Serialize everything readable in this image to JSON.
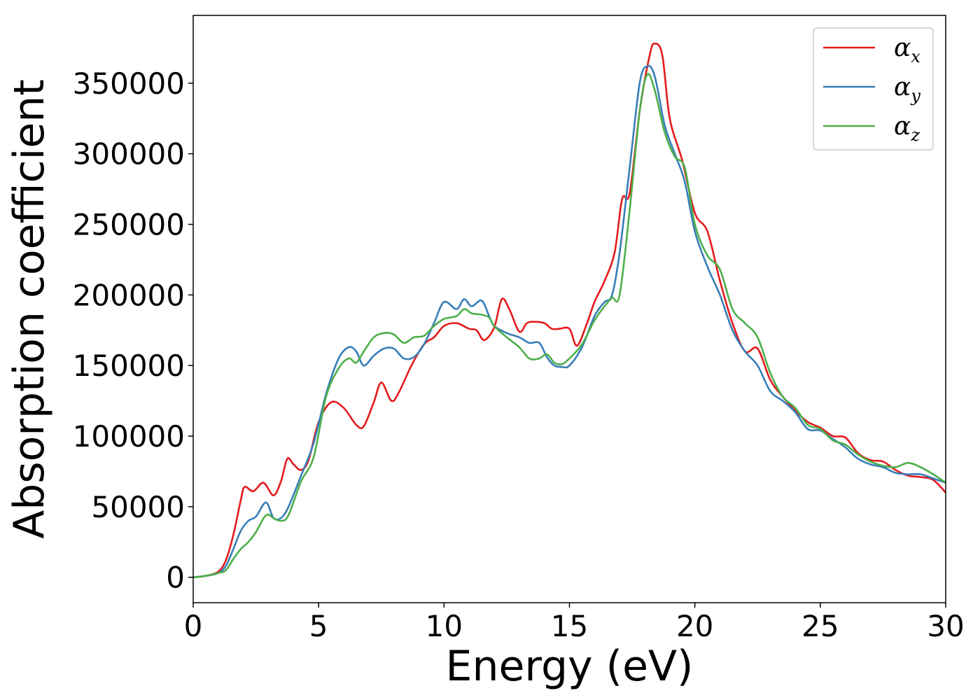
{
  "chart_data": {
    "type": "line",
    "title": "",
    "xlabel": "Energy (eV)",
    "ylabel": "Absorption coefficient",
    "xlim": [
      0,
      30
    ],
    "ylim": [
      -18000,
      398000
    ],
    "xticks": [
      0,
      5,
      10,
      15,
      20,
      25,
      30
    ],
    "xtick_labels": [
      "0",
      "5",
      "10",
      "15",
      "20",
      "25",
      "30"
    ],
    "yticks": [
      0,
      50000,
      100000,
      150000,
      200000,
      250000,
      300000,
      350000
    ],
    "ytick_labels": [
      "0",
      "50000",
      "100000",
      "150000",
      "200000",
      "250000",
      "300000",
      "350000"
    ],
    "grid": false,
    "legend_position": "top-right",
    "series": [
      {
        "name": "α",
        "subscript": "x",
        "color": "#e41a1c",
        "x": [
          0,
          0.5,
          1.0,
          1.3,
          1.6,
          1.9,
          2.05,
          2.4,
          2.8,
          3.2,
          3.5,
          3.75,
          4.0,
          4.3,
          4.6,
          5.0,
          5.5,
          6.0,
          6.5,
          6.8,
          7.2,
          7.5,
          7.9,
          8.2,
          8.7,
          9.2,
          9.6,
          10.0,
          10.5,
          11.0,
          11.3,
          11.6,
          12.0,
          12.3,
          12.6,
          13.0,
          13.3,
          13.6,
          14.0,
          14.3,
          14.6,
          15.0,
          15.3,
          15.7,
          16.0,
          16.4,
          16.8,
          17.1,
          17.4,
          17.8,
          18.2,
          18.4,
          18.7,
          19.0,
          19.5,
          20.0,
          20.5,
          21.0,
          21.5,
          22.0,
          22.5,
          23.0,
          23.5,
          24.0,
          24.5,
          25.0,
          25.5,
          26.0,
          26.5,
          27.0,
          27.5,
          28.0,
          28.5,
          29.0,
          29.5,
          30.0
        ],
        "y": [
          0,
          1000,
          4000,
          12000,
          30000,
          55000,
          64000,
          61000,
          67000,
          58000,
          68000,
          84000,
          80000,
          76000,
          83000,
          110000,
          124000,
          120000,
          108000,
          107000,
          124000,
          138000,
          125000,
          131000,
          150000,
          165000,
          170000,
          178000,
          180000,
          176000,
          175000,
          168000,
          177000,
          197000,
          190000,
          174000,
          180000,
          181000,
          180000,
          176000,
          176000,
          176000,
          164000,
          180000,
          195000,
          210000,
          230000,
          268000,
          272000,
          330000,
          370000,
          378000,
          370000,
          325000,
          295000,
          258000,
          245000,
          210000,
          180000,
          160000,
          162000,
          140000,
          128000,
          118000,
          110000,
          106000,
          100000,
          99000,
          88000,
          83000,
          82000,
          76000,
          72000,
          71000,
          69000,
          60000
        ]
      },
      {
        "name": "α",
        "subscript": "y",
        "color": "#377eb8",
        "x": [
          0,
          0.5,
          1.0,
          1.3,
          1.6,
          1.9,
          2.2,
          2.5,
          2.9,
          3.2,
          3.5,
          3.8,
          4.3,
          4.8,
          5.3,
          5.8,
          6.2,
          6.5,
          6.8,
          7.2,
          7.6,
          8.0,
          8.4,
          8.8,
          9.2,
          9.6,
          10.0,
          10.5,
          10.8,
          11.1,
          11.5,
          11.8,
          12.0,
          12.5,
          13.0,
          13.4,
          13.8,
          14.1,
          14.4,
          14.7,
          15.0,
          15.5,
          16.0,
          16.4,
          16.7,
          17.0,
          17.4,
          17.8,
          18.1,
          18.4,
          18.8,
          19.2,
          19.6,
          20.0,
          20.5,
          21.0,
          21.5,
          22.0,
          22.5,
          23.0,
          23.5,
          24.0,
          24.5,
          25.0,
          25.5,
          26.0,
          26.5,
          27.0,
          27.5,
          28.0,
          28.5,
          29.0,
          29.5,
          30.0
        ],
        "y": [
          0,
          1000,
          3000,
          8000,
          20000,
          33000,
          40000,
          43000,
          53000,
          42000,
          42000,
          50000,
          72000,
          95000,
          130000,
          155000,
          163000,
          160000,
          150000,
          157000,
          162000,
          162000,
          155000,
          156000,
          165000,
          180000,
          195000,
          190000,
          197000,
          192000,
          196000,
          185000,
          178000,
          173000,
          170000,
          166000,
          166000,
          156000,
          150000,
          149000,
          150000,
          163000,
          185000,
          195000,
          200000,
          230000,
          290000,
          350000,
          362000,
          355000,
          320000,
          300000,
          280000,
          245000,
          220000,
          200000,
          175000,
          160000,
          150000,
          132000,
          125000,
          117000,
          105000,
          104000,
          98000,
          92000,
          84000,
          80000,
          78000,
          74000,
          73000,
          73000,
          70000,
          67000
        ]
      },
      {
        "name": "α",
        "subscript": "z",
        "color": "#4daf4a",
        "x": [
          0,
          0.5,
          1.0,
          1.3,
          1.6,
          1.9,
          2.2,
          2.5,
          2.9,
          3.2,
          3.5,
          3.8,
          4.3,
          4.8,
          5.3,
          5.8,
          6.2,
          6.5,
          6.8,
          7.2,
          7.6,
          8.0,
          8.4,
          8.8,
          9.2,
          9.6,
          10.0,
          10.5,
          10.8,
          11.1,
          11.5,
          11.8,
          12.0,
          12.5,
          13.0,
          13.4,
          13.8,
          14.1,
          14.4,
          14.7,
          15.0,
          15.5,
          16.0,
          16.4,
          16.7,
          17.0,
          17.4,
          17.8,
          18.1,
          18.4,
          18.8,
          19.2,
          19.6,
          20.0,
          20.5,
          21.0,
          21.5,
          22.0,
          22.5,
          23.0,
          23.5,
          24.0,
          24.5,
          25.0,
          25.5,
          26.0,
          26.5,
          27.0,
          27.5,
          28.0,
          28.5,
          29.0,
          29.5,
          30.0
        ],
        "y": [
          0,
          1000,
          3000,
          5000,
          13000,
          20000,
          25000,
          32000,
          44000,
          42000,
          40000,
          44000,
          68000,
          85000,
          128000,
          148000,
          155000,
          152000,
          160000,
          170000,
          173000,
          172000,
          166000,
          170000,
          171000,
          178000,
          183000,
          185000,
          190000,
          187000,
          186000,
          184000,
          178000,
          170000,
          163000,
          155000,
          155000,
          158000,
          152000,
          151000,
          155000,
          165000,
          182000,
          192000,
          198000,
          200000,
          260000,
          330000,
          356000,
          345000,
          315000,
          298000,
          290000,
          250000,
          228000,
          218000,
          190000,
          180000,
          170000,
          145000,
          128000,
          120000,
          108000,
          105000,
          97000,
          94000,
          87000,
          82000,
          79000,
          78000,
          81000,
          78000,
          73000,
          67000
        ]
      }
    ]
  }
}
